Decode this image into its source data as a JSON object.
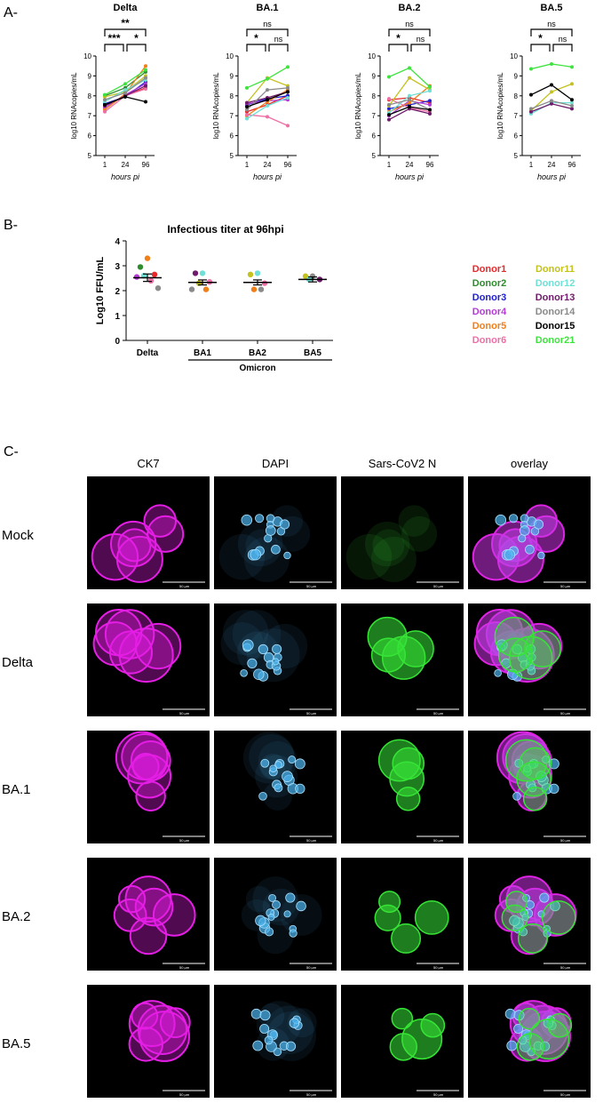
{
  "section_labels": {
    "a": "A-",
    "b": "B-",
    "c": "C-"
  },
  "panel_a": {
    "ylabel": "log10 RNAcopies/mL",
    "xlabel": "hours pi",
    "x_ticks": [
      "1",
      "24",
      "96"
    ],
    "y_ticks": [
      "5",
      "6",
      "7",
      "8",
      "9",
      "10"
    ]
  },
  "chart_data": [
    {
      "type": "line",
      "title": "Delta",
      "x": [
        1,
        24,
        96
      ],
      "ylim": [
        5,
        10
      ],
      "significance": [
        {
          "from": "1",
          "to": "96",
          "label": "**"
        },
        {
          "from": "1",
          "to": "24",
          "label": "***"
        },
        {
          "from": "24",
          "to": "96",
          "label": "*"
        }
      ],
      "series": [
        {
          "name": "Donor1",
          "values": [
            7.5,
            8.0,
            8.4
          ]
        },
        {
          "name": "Donor2",
          "values": [
            8.0,
            8.4,
            9.2
          ]
        },
        {
          "name": "Donor3",
          "values": [
            7.6,
            7.95,
            8.7
          ]
        },
        {
          "name": "Donor4",
          "values": [
            7.4,
            8.05,
            8.6
          ]
        },
        {
          "name": "Donor5",
          "values": [
            7.3,
            8.1,
            9.5
          ]
        },
        {
          "name": "Donor6",
          "values": [
            7.2,
            8.0,
            8.35
          ]
        },
        {
          "name": "Donor11",
          "values": [
            7.95,
            8.2,
            9.0
          ]
        },
        {
          "name": "Donor12",
          "values": [
            7.7,
            8.3,
            8.8
          ]
        },
        {
          "name": "Donor13",
          "values": [
            7.5,
            8.0,
            8.5
          ]
        },
        {
          "name": "Donor14",
          "values": [
            7.8,
            8.15,
            8.9
          ]
        },
        {
          "name": "Donor15",
          "values": [
            7.55,
            7.95,
            7.7
          ]
        },
        {
          "name": "Donor21",
          "values": [
            8.05,
            8.6,
            9.3
          ]
        }
      ]
    },
    {
      "type": "line",
      "title": "BA.1",
      "x": [
        1,
        24,
        96
      ],
      "ylim": [
        5,
        10
      ],
      "significance": [
        {
          "from": "1",
          "to": "96",
          "label": "ns"
        },
        {
          "from": "1",
          "to": "24",
          "label": "*"
        },
        {
          "from": "24",
          "to": "96",
          "label": "ns"
        }
      ],
      "series": [
        {
          "name": "Donor1",
          "values": [
            7.2,
            7.55,
            8.0
          ]
        },
        {
          "name": "Donor3",
          "values": [
            7.55,
            7.85,
            8.0
          ]
        },
        {
          "name": "Donor4",
          "values": [
            7.6,
            7.75,
            7.8
          ]
        },
        {
          "name": "Donor5",
          "values": [
            7.0,
            7.7,
            8.3
          ]
        },
        {
          "name": "Donor6",
          "values": [
            7.05,
            6.95,
            6.5
          ]
        },
        {
          "name": "Donor11",
          "values": [
            7.65,
            8.9,
            8.5
          ]
        },
        {
          "name": "Donor12",
          "values": [
            6.85,
            7.5,
            7.9
          ]
        },
        {
          "name": "Donor13",
          "values": [
            7.65,
            7.9,
            8.2
          ]
        },
        {
          "name": "Donor14",
          "values": [
            7.3,
            8.3,
            8.4
          ]
        },
        {
          "name": "Donor15",
          "values": [
            7.45,
            7.8,
            8.2
          ]
        },
        {
          "name": "Donor21",
          "values": [
            8.4,
            8.85,
            9.45
          ]
        }
      ]
    },
    {
      "type": "line",
      "title": "BA.2",
      "x": [
        1,
        24,
        96
      ],
      "ylim": [
        5,
        10
      ],
      "significance": [
        {
          "from": "1",
          "to": "96",
          "label": "ns"
        },
        {
          "from": "1",
          "to": "24",
          "label": "*"
        },
        {
          "from": "24",
          "to": "96",
          "label": "ns"
        }
      ],
      "series": [
        {
          "name": "Donor1",
          "values": [
            7.8,
            7.9,
            7.65
          ]
        },
        {
          "name": "Donor3",
          "values": [
            7.35,
            7.55,
            7.75
          ]
        },
        {
          "name": "Donor4",
          "values": [
            7.0,
            7.75,
            7.55
          ]
        },
        {
          "name": "Donor5",
          "values": [
            7.2,
            7.65,
            8.5
          ]
        },
        {
          "name": "Donor6",
          "values": [
            7.85,
            7.4,
            7.2
          ]
        },
        {
          "name": "Donor11",
          "values": [
            7.5,
            8.9,
            8.3
          ]
        },
        {
          "name": "Donor12",
          "values": [
            7.15,
            8.0,
            8.25
          ]
        },
        {
          "name": "Donor13",
          "values": [
            6.8,
            7.35,
            7.1
          ]
        },
        {
          "name": "Donor14",
          "values": [
            7.55,
            7.8,
            7.3
          ]
        },
        {
          "name": "Donor15",
          "values": [
            7.05,
            7.45,
            7.3
          ]
        },
        {
          "name": "Donor21",
          "values": [
            8.95,
            9.4,
            8.45
          ]
        }
      ]
    },
    {
      "type": "line",
      "title": "BA.5",
      "x": [
        1,
        24,
        96
      ],
      "ylim": [
        5,
        10
      ],
      "significance": [
        {
          "from": "1",
          "to": "96",
          "label": "ns"
        },
        {
          "from": "1",
          "to": "24",
          "label": "*"
        },
        {
          "from": "24",
          "to": "96",
          "label": "ns"
        }
      ],
      "series": [
        {
          "name": "Donor11",
          "values": [
            7.25,
            8.2,
            8.6
          ]
        },
        {
          "name": "Donor12",
          "values": [
            7.1,
            7.65,
            7.65
          ]
        },
        {
          "name": "Donor13",
          "values": [
            7.2,
            7.6,
            7.35
          ]
        },
        {
          "name": "Donor14",
          "values": [
            7.35,
            7.75,
            7.5
          ]
        },
        {
          "name": "Donor15",
          "values": [
            8.05,
            8.55,
            7.8
          ]
        },
        {
          "name": "Donor21",
          "values": [
            9.35,
            9.6,
            9.45
          ]
        }
      ]
    },
    {
      "type": "scatter",
      "title": "Infectious titer at 96hpi",
      "ylabel": "Log10 FFU/mL",
      "categories": [
        "Delta",
        "BA1",
        "BA2",
        "BA5"
      ],
      "group_label": "Omicron",
      "y_ticks": [
        "0",
        "1",
        "2",
        "3",
        "4"
      ],
      "ylim": [
        0,
        4
      ],
      "means": [
        2.52,
        2.33,
        2.33,
        2.45
      ],
      "sem": [
        0.15,
        0.1,
        0.1,
        0.1
      ],
      "points": [
        {
          "category": "Delta",
          "donor": "Donor5",
          "value": 3.3
        },
        {
          "category": "Delta",
          "donor": "Donor2",
          "value": 2.95
        },
        {
          "category": "Delta",
          "donor": "Donor1",
          "value": 2.65
        },
        {
          "category": "Delta",
          "donor": "Donor12",
          "value": 2.6
        },
        {
          "category": "Delta",
          "donor": "Donor6",
          "value": 2.4
        },
        {
          "category": "Delta",
          "donor": "Donor4",
          "value": 2.55
        },
        {
          "category": "Delta",
          "donor": "Donor14",
          "value": 2.1
        },
        {
          "category": "BA1",
          "donor": "Donor12",
          "value": 2.7
        },
        {
          "category": "BA1",
          "donor": "Donor13",
          "value": 2.7
        },
        {
          "category": "BA1",
          "donor": "Donor6",
          "value": 2.35
        },
        {
          "category": "BA1",
          "donor": "Donor11",
          "value": 2.3
        },
        {
          "category": "BA1",
          "donor": "Donor5",
          "value": 2.05
        },
        {
          "category": "BA1",
          "donor": "Donor14",
          "value": 2.05
        },
        {
          "category": "BA2",
          "donor": "Donor12",
          "value": 2.7
        },
        {
          "category": "BA2",
          "donor": "Donor11",
          "value": 2.65
        },
        {
          "category": "BA2",
          "donor": "Donor6",
          "value": 2.3
        },
        {
          "category": "BA2",
          "donor": "Donor5",
          "value": 2.05
        },
        {
          "category": "BA2",
          "donor": "Donor14",
          "value": 2.05
        },
        {
          "category": "BA5",
          "donor": "Donor14",
          "value": 2.58
        },
        {
          "category": "BA5",
          "donor": "Donor11",
          "value": 2.58
        },
        {
          "category": "BA5",
          "donor": "Donor13",
          "value": 2.45
        },
        {
          "category": "BA5",
          "donor": "Donor12",
          "value": 2.45
        }
      ]
    }
  ],
  "legend": [
    {
      "name": "Donor1",
      "color": "#e8282b"
    },
    {
      "name": "Donor2",
      "color": "#2e8b2e"
    },
    {
      "name": "Donor3",
      "color": "#2020d0"
    },
    {
      "name": "Donor4",
      "color": "#b43ad6"
    },
    {
      "name": "Donor5",
      "color": "#f07f1a"
    },
    {
      "name": "Donor6",
      "color": "#ee6ea6"
    },
    {
      "name": "Donor11",
      "color": "#c4c21e"
    },
    {
      "name": "Donor12",
      "color": "#6ee0d6"
    },
    {
      "name": "Donor13",
      "color": "#6f1a6a"
    },
    {
      "name": "Donor14",
      "color": "#8a8a8a"
    },
    {
      "name": "Donor15",
      "color": "#000000"
    },
    {
      "name": "Donor21",
      "color": "#3fe33f"
    }
  ],
  "panel_c": {
    "columns": [
      "CK7",
      "DAPI",
      "Sars-CoV2 N",
      "overlay"
    ],
    "rows": [
      "Mock",
      "Delta",
      "BA.1",
      "BA.2",
      "BA.5"
    ],
    "scale_bar": "50 µm",
    "stain_colors": {
      "CK7": "#e41ee4",
      "DAPI": "#4cb4ee",
      "Sars-CoV2 N": "#36e436",
      "overlay": "#7fe8ee"
    }
  }
}
